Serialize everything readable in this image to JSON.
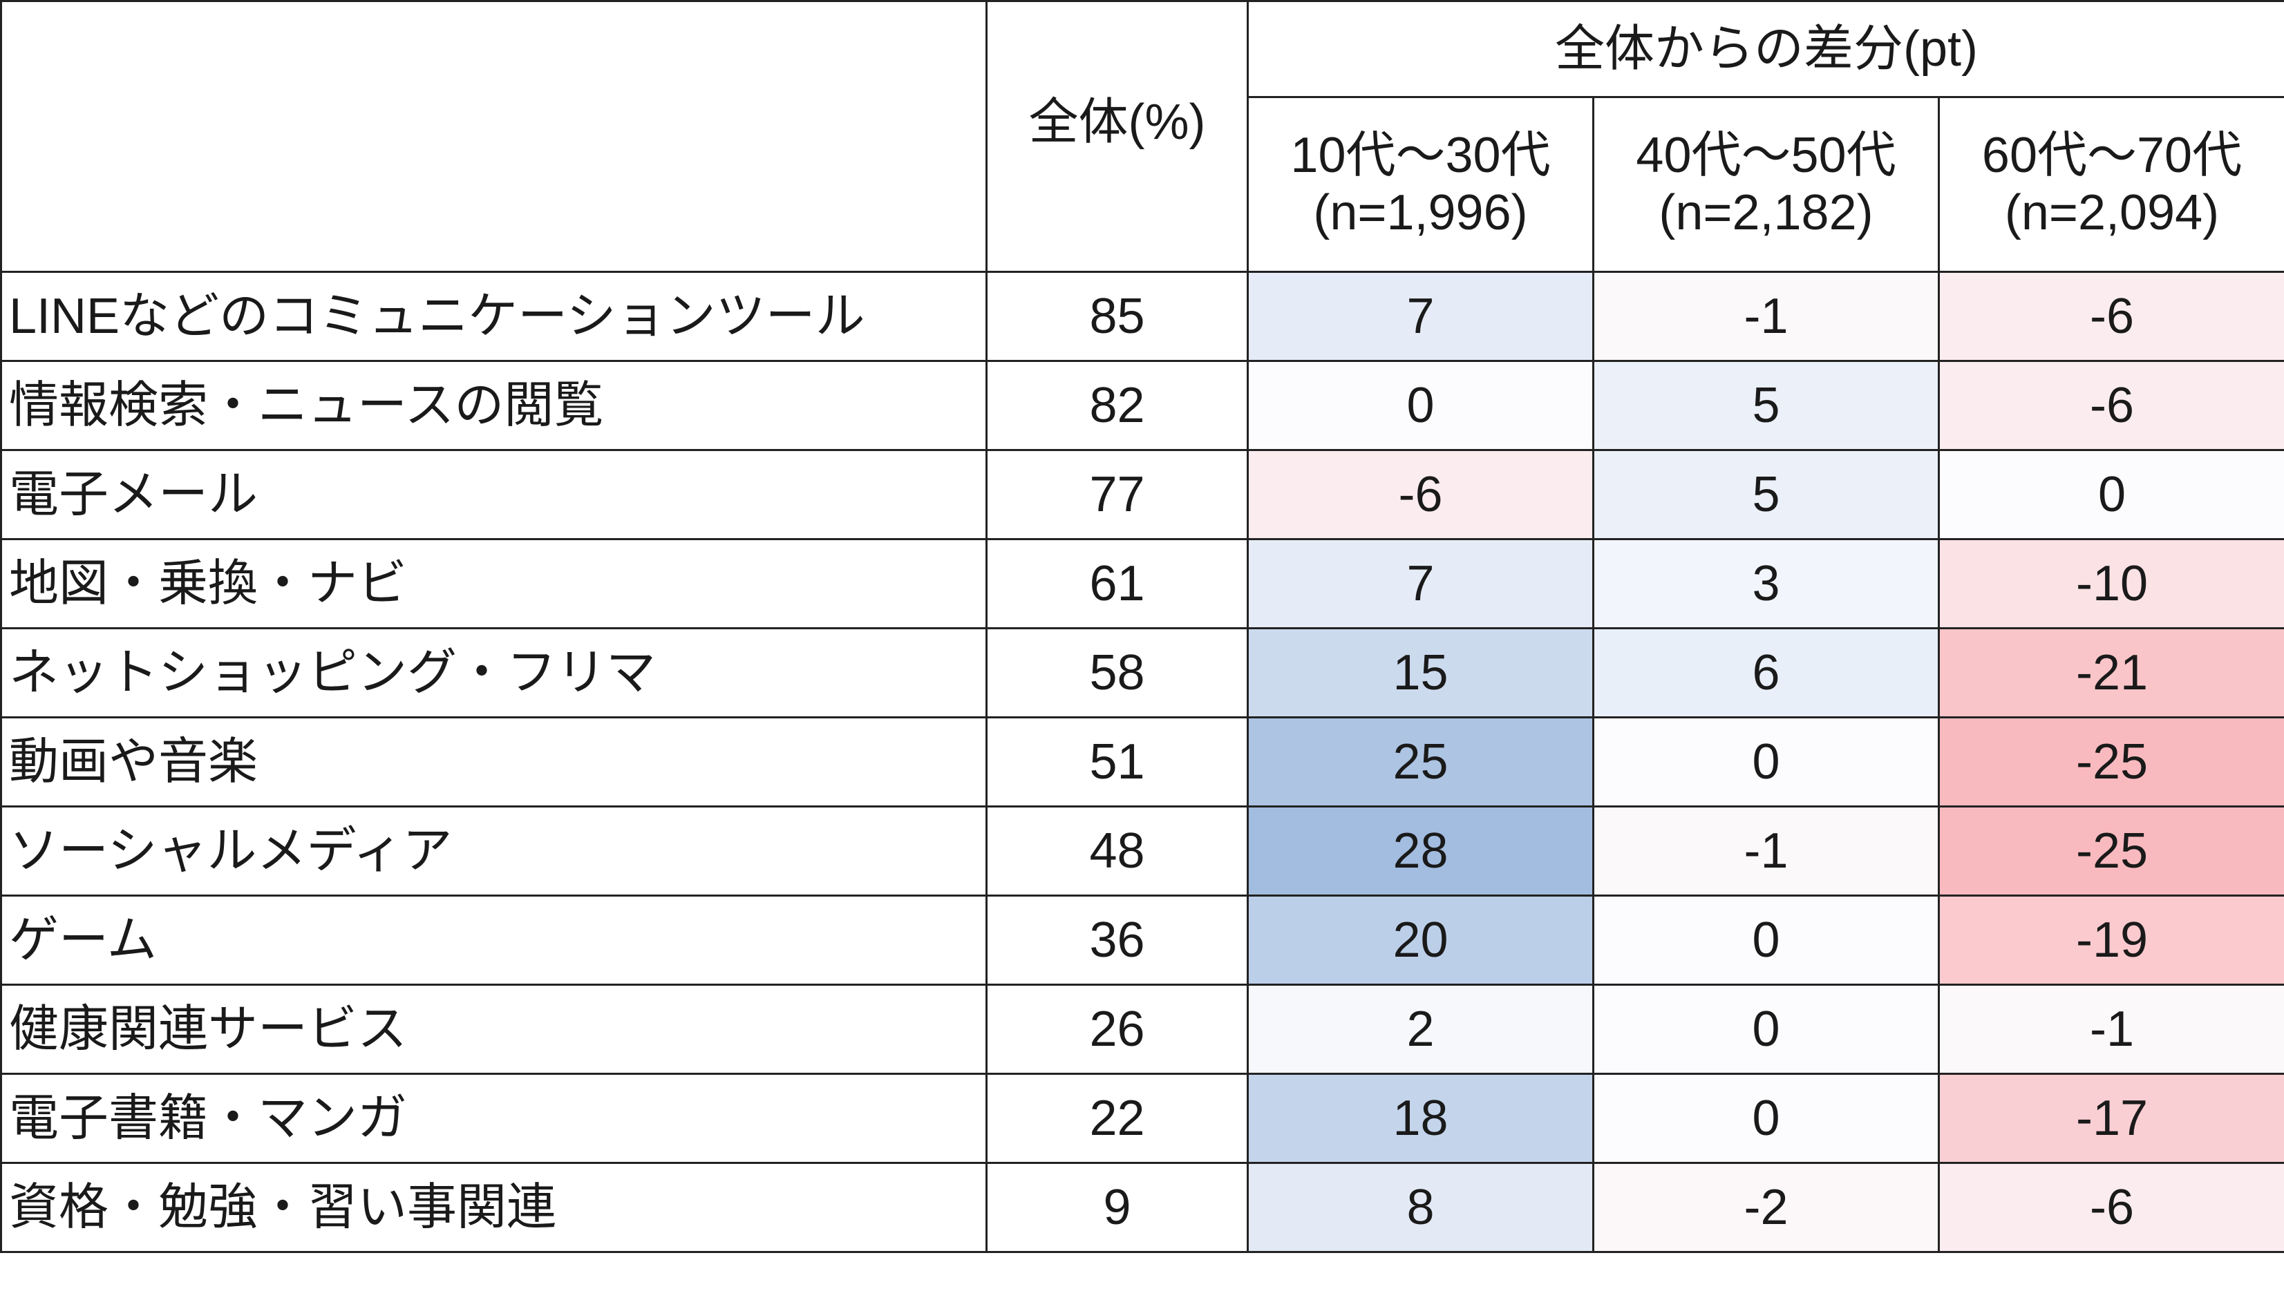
{
  "chart_data": {
    "type": "table",
    "header": {
      "overall": "全体(%)",
      "group": "全体からの差分(pt)",
      "columns": [
        {
          "age": "10代～30代",
          "n": "(n=1,996)"
        },
        {
          "age": "40代～50代",
          "n": "(n=2,182)"
        },
        {
          "age": "60代～70代",
          "n": "(n=2,094)"
        }
      ]
    },
    "rows": [
      {
        "label": "LINEなどのコミュニケーションツール",
        "overall": "85",
        "diffs": [
          "7",
          "-1",
          "-6"
        ]
      },
      {
        "label": "情報検索・ニュースの閲覧",
        "overall": "82",
        "diffs": [
          "0",
          "5",
          "-6"
        ]
      },
      {
        "label": "電子メール",
        "overall": "77",
        "diffs": [
          "-6",
          "5",
          "0"
        ]
      },
      {
        "label": "地図・乗換・ナビ",
        "overall": "61",
        "diffs": [
          "7",
          "3",
          "-10"
        ]
      },
      {
        "label": "ネットショッピング・フリマ",
        "overall": "58",
        "diffs": [
          "15",
          "6",
          "-21"
        ]
      },
      {
        "label": "動画や音楽",
        "overall": "51",
        "diffs": [
          "25",
          "0",
          "-25"
        ]
      },
      {
        "label": "ソーシャルメディア",
        "overall": "48",
        "diffs": [
          "28",
          "-1",
          "-25"
        ]
      },
      {
        "label": "ゲーム",
        "overall": "36",
        "diffs": [
          "20",
          "0",
          "-19"
        ]
      },
      {
        "label": "健康関連サービス",
        "overall": "26",
        "diffs": [
          "2",
          "0",
          "-1"
        ]
      },
      {
        "label": "電子書籍・マンガ",
        "overall": "22",
        "diffs": [
          "18",
          "0",
          "-17"
        ]
      },
      {
        "label": "資格・勉強・習い事関連",
        "overall": "9",
        "diffs": [
          "8",
          "-2",
          "-6"
        ]
      }
    ],
    "colors": {
      "positive_max": "#a3bde0",
      "negative_max": "#f9b2b7",
      "neutral": "#fcfcfe"
    }
  }
}
